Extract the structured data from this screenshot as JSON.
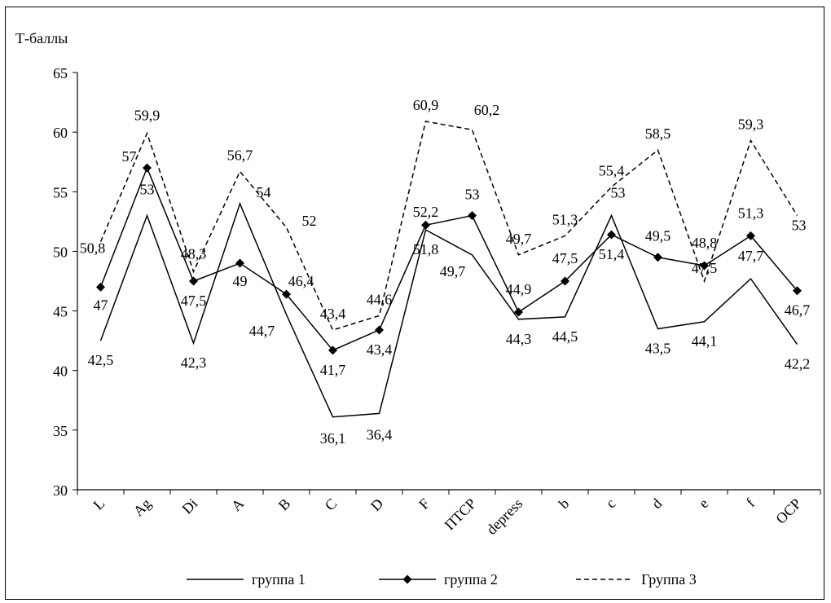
{
  "chart_data": {
    "type": "line",
    "title": "",
    "ylabel": "Т-баллы",
    "xlabel": "",
    "ylim": [
      30,
      65
    ],
    "yticks": [
      30,
      35,
      40,
      45,
      50,
      55,
      60,
      65
    ],
    "categories": [
      "L",
      "Ag",
      "Di",
      "A",
      "B",
      "C",
      "D",
      "F",
      "ПТСР",
      "depress",
      "b",
      "c",
      "d",
      "e",
      "f",
      "ОСР"
    ],
    "grid": false,
    "legend_position": "bottom",
    "series": [
      {
        "name": "группа 1",
        "style": "solid",
        "marker": "none",
        "values": [
          42.5,
          53,
          42.3,
          54,
          44.7,
          36.1,
          36.4,
          51.8,
          49.7,
          44.3,
          44.5,
          53,
          43.5,
          44.1,
          47.7,
          42.2
        ],
        "labels": [
          "42,5",
          "53",
          "42,3",
          "",
          "44,7",
          "36,1",
          "36,4",
          "51,8",
          "49,7",
          "44,3",
          "44,5",
          "53",
          "43,5",
          "44,1",
          "47,7",
          "42,2"
        ]
      },
      {
        "name": "группа 2",
        "style": "solid",
        "marker": "diamond",
        "values": [
          47,
          57,
          47.5,
          49,
          46.4,
          41.7,
          43.4,
          52.2,
          53,
          44.9,
          47.5,
          51.4,
          49.5,
          48.8,
          51.3,
          46.7
        ],
        "labels": [
          "47",
          "57",
          "47,5",
          "49",
          "46,4",
          "41,7",
          "43,4",
          "52,2",
          "53",
          "44,9",
          "47,5",
          "51,4",
          "49,5",
          "48,8",
          "51,3",
          "46,7"
        ]
      },
      {
        "name": "Группа 3",
        "style": "dashed",
        "marker": "none",
        "values": [
          50.8,
          59.9,
          48.3,
          56.7,
          52,
          43.4,
          44.6,
          60.9,
          60.2,
          49.7,
          51.3,
          55.4,
          58.5,
          47.5,
          59.3,
          53
        ],
        "labels": [
          "50,8",
          "59,9",
          "48,3",
          "56,7",
          "52",
          "43,4",
          "44,6",
          "60,9",
          "60,2",
          "49,7",
          "51,3",
          "55,4",
          "58,5",
          "47,5",
          "59,3",
          "53"
        ]
      }
    ],
    "extra_labels": [
      "54"
    ]
  }
}
